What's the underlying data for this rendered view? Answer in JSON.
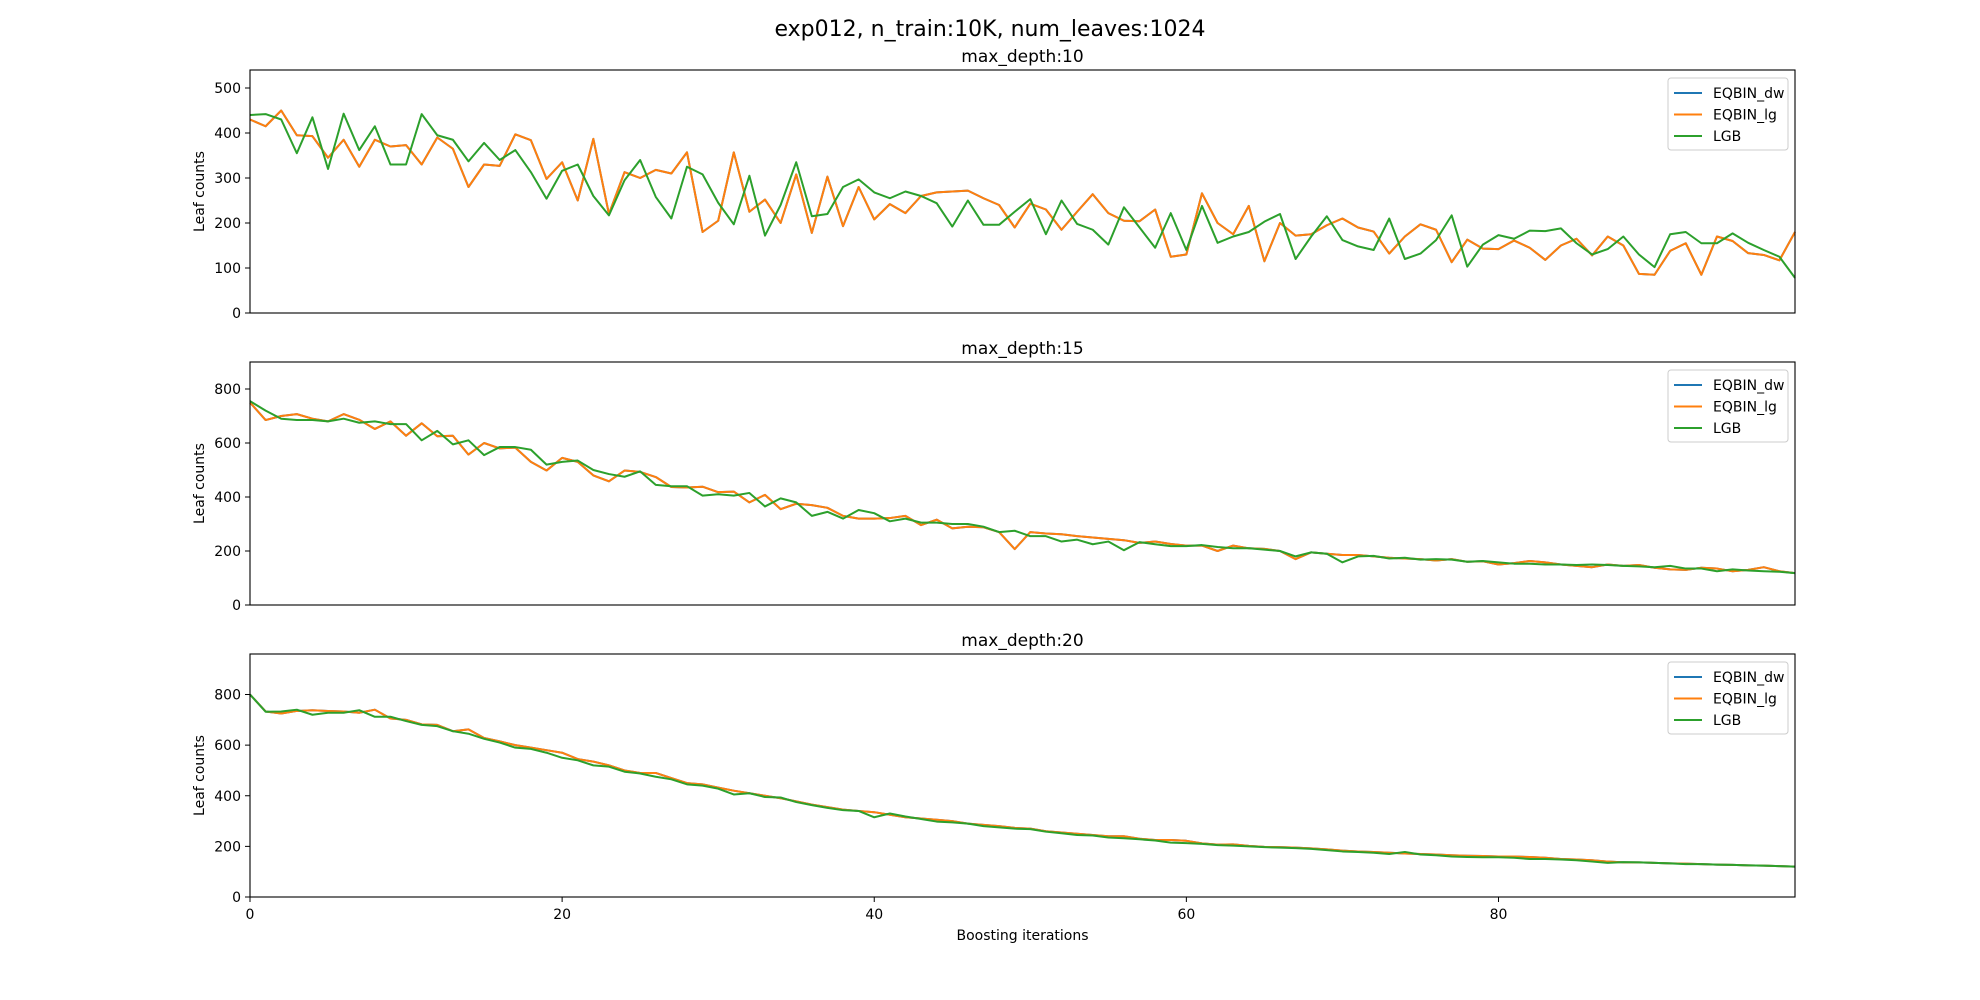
{
  "figure": {
    "title": "exp012, n_train:10K, num_leaves:1024"
  },
  "colors": {
    "EQBIN_dw": "#1f77b4",
    "EQBIN_lg": "#ff7f0e",
    "LGB": "#2ca02c"
  },
  "chart_data": [
    {
      "type": "line",
      "title": "max_depth:10",
      "xlabel": "",
      "ylabel": "Leaf counts",
      "xlim": [
        0,
        99
      ],
      "ylim": [
        0,
        540
      ],
      "yticks": [
        0,
        100,
        200,
        300,
        400,
        500
      ],
      "xticks": [],
      "grid": false,
      "legend": "top-right",
      "series": [
        {
          "name": "EQBIN_dw",
          "values": [
            430,
            415,
            450,
            395,
            393,
            345,
            385,
            325,
            385,
            370,
            373,
            330,
            390,
            365,
            280,
            330,
            327,
            397,
            384,
            298,
            335,
            250,
            387,
            220,
            313,
            300,
            318,
            310,
            357,
            180,
            205,
            357,
            225,
            252,
            200,
            308,
            178,
            303,
            193,
            280,
            208,
            242,
            222,
            260,
            268,
            270,
            272,
            255,
            240,
            190,
            243,
            230,
            185,
            225,
            264,
            222,
            205,
            204,
            230,
            125,
            130,
            266,
            200,
            175,
            238,
            115,
            200,
            172,
            175,
            195,
            210,
            190,
            181,
            132,
            170,
            197,
            185,
            113,
            163,
            143,
            142,
            161,
            145,
            118,
            150,
            165,
            128,
            170,
            150,
            87,
            85,
            138,
            155,
            85,
            170,
            160,
            133,
            129,
            117,
            180
          ]
        },
        {
          "name": "EQBIN_lg",
          "values": [
            430,
            415,
            450,
            395,
            393,
            345,
            385,
            325,
            385,
            370,
            373,
            330,
            390,
            365,
            280,
            330,
            327,
            397,
            384,
            298,
            335,
            250,
            387,
            220,
            313,
            300,
            318,
            310,
            357,
            180,
            205,
            357,
            225,
            252,
            200,
            308,
            178,
            303,
            193,
            280,
            208,
            242,
            222,
            260,
            268,
            270,
            272,
            255,
            240,
            190,
            243,
            230,
            185,
            225,
            264,
            222,
            205,
            204,
            230,
            125,
            130,
            266,
            200,
            175,
            238,
            115,
            200,
            172,
            175,
            195,
            210,
            190,
            181,
            132,
            170,
            197,
            185,
            113,
            163,
            143,
            142,
            161,
            145,
            118,
            150,
            165,
            128,
            170,
            150,
            87,
            85,
            138,
            155,
            85,
            170,
            160,
            133,
            129,
            117,
            180
          ]
        },
        {
          "name": "LGB",
          "values": [
            440,
            442,
            430,
            355,
            435,
            320,
            443,
            362,
            415,
            330,
            330,
            442,
            395,
            385,
            337,
            378,
            340,
            362,
            313,
            254,
            316,
            330,
            260,
            217,
            295,
            340,
            258,
            210,
            325,
            308,
            245,
            197,
            305,
            172,
            240,
            335,
            215,
            220,
            280,
            297,
            268,
            255,
            270,
            260,
            244,
            192,
            250,
            196,
            196,
            225,
            253,
            175,
            250,
            198,
            185,
            152,
            235,
            190,
            145,
            222,
            140,
            238,
            156,
            170,
            180,
            203,
            220,
            120,
            170,
            215,
            162,
            148,
            140,
            210,
            120,
            132,
            162,
            217,
            103,
            152,
            173,
            165,
            183,
            182,
            188,
            155,
            130,
            142,
            170,
            130,
            102,
            175,
            180,
            155,
            155,
            177,
            156,
            140,
            125,
            78
          ]
        }
      ]
    },
    {
      "type": "line",
      "title": "max_depth:15",
      "xlabel": "",
      "ylabel": "Leaf counts",
      "xlim": [
        0,
        99
      ],
      "ylim": [
        0,
        900
      ],
      "yticks": [
        0,
        200,
        400,
        600,
        800
      ],
      "xticks": [],
      "grid": false,
      "legend": "top-right",
      "series": [
        {
          "name": "EQBIN_dw",
          "values": [
            750,
            685,
            700,
            707,
            690,
            680,
            707,
            686,
            652,
            680,
            627,
            673,
            625,
            627,
            557,
            600,
            580,
            583,
            530,
            498,
            545,
            530,
            480,
            458,
            498,
            493,
            474,
            437,
            435,
            438,
            418,
            420,
            380,
            408,
            355,
            375,
            370,
            360,
            330,
            320,
            320,
            322,
            330,
            296,
            316,
            284,
            290,
            288,
            270,
            207,
            270,
            265,
            262,
            255,
            250,
            245,
            240,
            230,
            235,
            226,
            220,
            220,
            200,
            220,
            210,
            208,
            200,
            170,
            195,
            190,
            185,
            185,
            180,
            175,
            172,
            170,
            165,
            170,
            160,
            162,
            150,
            155,
            163,
            158,
            150,
            145,
            140,
            150,
            145,
            148,
            138,
            132,
            130,
            138,
            135,
            125,
            130,
            140,
            125,
            118
          ]
        },
        {
          "name": "EQBIN_lg",
          "values": [
            750,
            685,
            700,
            707,
            690,
            680,
            707,
            686,
            652,
            680,
            627,
            673,
            625,
            627,
            557,
            600,
            580,
            583,
            530,
            498,
            545,
            530,
            480,
            458,
            498,
            493,
            474,
            437,
            435,
            438,
            418,
            420,
            380,
            408,
            355,
            375,
            370,
            360,
            330,
            320,
            320,
            322,
            330,
            296,
            316,
            284,
            290,
            288,
            270,
            207,
            270,
            265,
            262,
            255,
            250,
            245,
            240,
            230,
            235,
            226,
            220,
            220,
            200,
            220,
            210,
            208,
            200,
            170,
            195,
            190,
            185,
            185,
            180,
            175,
            172,
            170,
            165,
            170,
            160,
            162,
            150,
            155,
            163,
            158,
            150,
            145,
            140,
            150,
            145,
            148,
            138,
            132,
            130,
            138,
            135,
            125,
            130,
            140,
            125,
            118
          ]
        },
        {
          "name": "LGB",
          "values": [
            755,
            720,
            690,
            685,
            685,
            680,
            690,
            675,
            680,
            670,
            670,
            610,
            645,
            595,
            610,
            555,
            585,
            585,
            575,
            520,
            530,
            535,
            500,
            485,
            475,
            495,
            445,
            440,
            440,
            405,
            410,
            405,
            415,
            365,
            395,
            380,
            330,
            345,
            320,
            352,
            340,
            310,
            320,
            305,
            305,
            300,
            300,
            290,
            270,
            275,
            255,
            255,
            235,
            242,
            225,
            235,
            203,
            233,
            225,
            218,
            218,
            222,
            215,
            210,
            210,
            205,
            200,
            180,
            195,
            190,
            158,
            180,
            182,
            172,
            175,
            168,
            170,
            168,
            160,
            163,
            158,
            153,
            153,
            150,
            150,
            148,
            150,
            148,
            145,
            143,
            140,
            145,
            135,
            135,
            125,
            132,
            128,
            125,
            123,
            118
          ]
        }
      ]
    },
    {
      "type": "line",
      "title": "max_depth:20",
      "xlabel": "Boosting iterations",
      "ylabel": "Leaf counts",
      "xlim": [
        0,
        99
      ],
      "ylim": [
        0,
        960
      ],
      "yticks": [
        0,
        200,
        400,
        600,
        800
      ],
      "xticks": [
        0,
        20,
        40,
        60,
        80
      ],
      "grid": false,
      "legend": "top-right",
      "series": [
        {
          "name": "EQBIN_dw",
          "values": [
            800,
            733,
            725,
            735,
            738,
            735,
            733,
            728,
            740,
            705,
            700,
            682,
            680,
            655,
            662,
            628,
            615,
            600,
            590,
            580,
            570,
            545,
            535,
            520,
            500,
            490,
            490,
            470,
            450,
            445,
            432,
            420,
            410,
            400,
            390,
            378,
            365,
            355,
            345,
            340,
            335,
            325,
            315,
            310,
            305,
            300,
            290,
            285,
            280,
            273,
            270,
            260,
            255,
            250,
            245,
            240,
            240,
            230,
            225,
            225,
            222,
            212,
            207,
            208,
            202,
            198,
            197,
            195,
            192,
            188,
            183,
            180,
            178,
            175,
            172,
            170,
            168,
            165,
            163,
            162,
            160,
            160,
            158,
            155,
            150,
            148,
            145,
            140,
            137,
            137,
            135,
            133,
            132,
            130,
            128,
            127,
            125,
            124,
            122,
            120
          ]
        },
        {
          "name": "EQBIN_lg",
          "values": [
            800,
            733,
            725,
            735,
            738,
            735,
            733,
            728,
            740,
            705,
            700,
            682,
            680,
            655,
            662,
            628,
            615,
            600,
            590,
            580,
            570,
            545,
            535,
            520,
            500,
            490,
            490,
            470,
            450,
            445,
            432,
            420,
            410,
            400,
            390,
            378,
            365,
            355,
            345,
            340,
            335,
            325,
            315,
            310,
            305,
            300,
            290,
            285,
            280,
            273,
            270,
            260,
            255,
            250,
            245,
            240,
            240,
            230,
            225,
            225,
            222,
            212,
            207,
            208,
            202,
            198,
            197,
            195,
            192,
            188,
            183,
            180,
            178,
            175,
            172,
            170,
            168,
            165,
            163,
            162,
            160,
            160,
            158,
            155,
            150,
            148,
            145,
            140,
            137,
            137,
            135,
            133,
            132,
            130,
            128,
            127,
            125,
            124,
            122,
            120
          ]
        },
        {
          "name": "LGB",
          "values": [
            800,
            732,
            733,
            740,
            720,
            728,
            728,
            738,
            712,
            712,
            695,
            680,
            675,
            655,
            645,
            625,
            610,
            590,
            585,
            570,
            550,
            540,
            520,
            515,
            495,
            488,
            475,
            465,
            445,
            440,
            428,
            405,
            410,
            395,
            393,
            375,
            363,
            352,
            343,
            340,
            315,
            330,
            318,
            308,
            298,
            295,
            290,
            280,
            275,
            270,
            268,
            258,
            252,
            245,
            243,
            235,
            232,
            228,
            223,
            215,
            213,
            210,
            205,
            203,
            200,
            197,
            195,
            193,
            190,
            185,
            180,
            178,
            175,
            170,
            178,
            168,
            165,
            160,
            158,
            157,
            157,
            155,
            150,
            150,
            148,
            145,
            140,
            135,
            138,
            137,
            135,
            133,
            130,
            130,
            128,
            127,
            125,
            124,
            122,
            120
          ]
        }
      ]
    }
  ]
}
